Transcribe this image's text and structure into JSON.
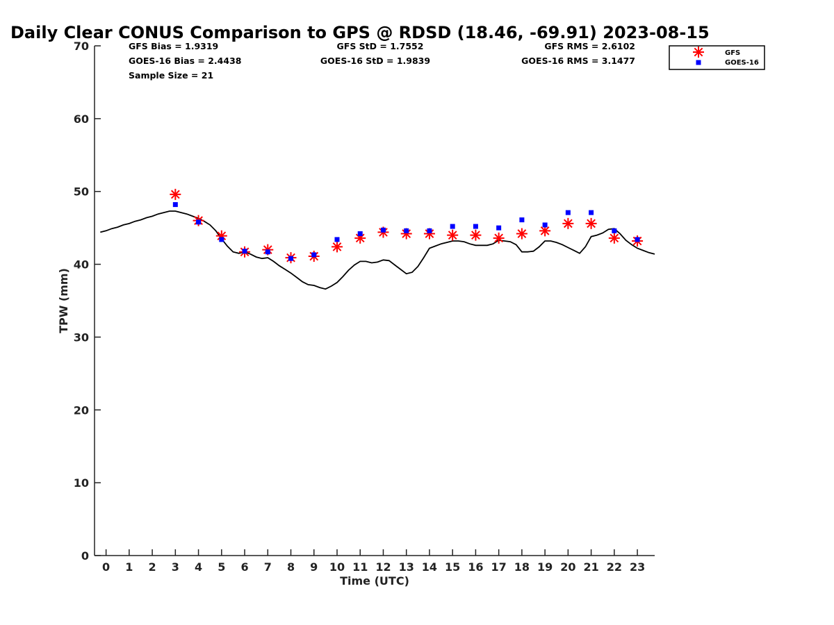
{
  "chart_data": {
    "type": "scatter",
    "title": "Daily Clear CONUS Comparison to GPS @ RDSD (18.46, -69.91) 2023-08-15",
    "xlabel": "Time (UTC)",
    "ylabel": "TPW (mm)",
    "xlim": [
      -0.5,
      23.75
    ],
    "ylim": [
      0,
      70
    ],
    "xticks": [
      0,
      1,
      2,
      3,
      4,
      5,
      6,
      7,
      8,
      9,
      10,
      11,
      12,
      13,
      14,
      15,
      16,
      17,
      18,
      19,
      20,
      21,
      22,
      23
    ],
    "yticks": [
      0,
      10,
      20,
      30,
      40,
      50,
      60,
      70
    ],
    "grid": false,
    "legend_position": "top-right",
    "stats": {
      "gfs_bias": "GFS Bias = 1.9319",
      "goes_bias": "GOES-16 Bias = 2.4438",
      "sample_size": "Sample Size = 21",
      "gfs_std": "GFS StD = 1.7552",
      "goes_std": "GOES-16 StD = 1.9839",
      "gfs_rms": "GFS RMS = 2.6102",
      "goes_rms": "GOES-16 RMS = 3.1477"
    },
    "series": [
      {
        "name": "GFS",
        "marker": "asterisk",
        "color": "#ff0000",
        "x": [
          3,
          4,
          5,
          6,
          7,
          8,
          9,
          10,
          11,
          12,
          13,
          14,
          15,
          16,
          17,
          18,
          19,
          20,
          21,
          22,
          23
        ],
        "y": [
          49.6,
          46.0,
          43.9,
          41.7,
          42.0,
          40.9,
          41.1,
          42.4,
          43.6,
          44.4,
          44.2,
          44.2,
          44.0,
          44.0,
          43.6,
          44.2,
          44.6,
          45.6,
          45.6,
          43.6,
          43.2
        ]
      },
      {
        "name": "GOES-16",
        "marker": "square",
        "color": "#0000ff",
        "x": [
          3,
          4,
          5,
          6,
          7,
          8,
          9,
          10,
          11,
          12,
          13,
          14,
          15,
          16,
          17,
          18,
          19,
          20,
          21,
          22,
          23
        ],
        "y": [
          48.2,
          45.8,
          43.4,
          41.8,
          41.7,
          40.8,
          41.3,
          43.4,
          44.2,
          44.7,
          44.6,
          44.6,
          45.2,
          45.2,
          45.0,
          46.1,
          45.4,
          47.1,
          47.1,
          44.6,
          43.4
        ]
      },
      {
        "marker": "line",
        "color": "#000000",
        "x": [
          -0.25,
          0,
          0.25,
          0.5,
          0.75,
          1,
          1.25,
          1.5,
          1.75,
          2,
          2.25,
          2.5,
          2.75,
          3,
          3.25,
          3.5,
          3.75,
          4,
          4.25,
          4.5,
          4.75,
          5,
          5.25,
          5.5,
          5.75,
          6,
          6.25,
          6.5,
          6.75,
          7,
          7.25,
          7.5,
          7.75,
          8,
          8.25,
          8.5,
          8.75,
          9,
          9.25,
          9.5,
          9.75,
          10,
          10.25,
          10.5,
          10.75,
          11,
          11.25,
          11.5,
          11.75,
          12,
          12.25,
          12.5,
          12.75,
          13,
          13.25,
          13.5,
          13.75,
          14,
          14.25,
          14.5,
          14.75,
          15,
          15.25,
          15.5,
          15.75,
          16,
          16.25,
          16.5,
          16.75,
          17,
          17.25,
          17.5,
          17.75,
          18,
          18.25,
          18.5,
          18.75,
          19,
          19.25,
          19.5,
          19.75,
          20,
          20.25,
          20.5,
          20.75,
          21,
          21.25,
          21.5,
          21.75,
          22,
          22.25,
          22.5,
          22.75,
          23,
          23.25,
          23.5,
          23.75
        ],
        "y": [
          44.4,
          44.6,
          44.9,
          45.1,
          45.4,
          45.6,
          45.9,
          46.1,
          46.4,
          46.6,
          46.9,
          47.1,
          47.3,
          47.3,
          47.1,
          46.9,
          46.6,
          46.3,
          45.9,
          45.4,
          44.6,
          43.5,
          42.5,
          41.7,
          41.5,
          41.7,
          41.4,
          41.0,
          40.8,
          40.9,
          40.4,
          39.8,
          39.3,
          38.8,
          38.2,
          37.6,
          37.2,
          37.1,
          36.8,
          36.6,
          37.0,
          37.5,
          38.3,
          39.2,
          39.9,
          40.4,
          40.4,
          40.2,
          40.3,
          40.6,
          40.5,
          39.9,
          39.3,
          38.7,
          38.9,
          39.7,
          40.9,
          42.2,
          42.5,
          42.8,
          43.0,
          43.2,
          43.2,
          43.1,
          42.8,
          42.6,
          42.6,
          42.6,
          42.8,
          43.3,
          43.2,
          43.1,
          42.7,
          41.7,
          41.7,
          41.8,
          42.4,
          43.2,
          43.2,
          43.0,
          42.7,
          42.3,
          41.9,
          41.5,
          42.4,
          43.8,
          44.0,
          44.3,
          44.8,
          44.9,
          44.2,
          43.3,
          42.7,
          42.2,
          41.9,
          41.6,
          41.4
        ]
      }
    ]
  }
}
